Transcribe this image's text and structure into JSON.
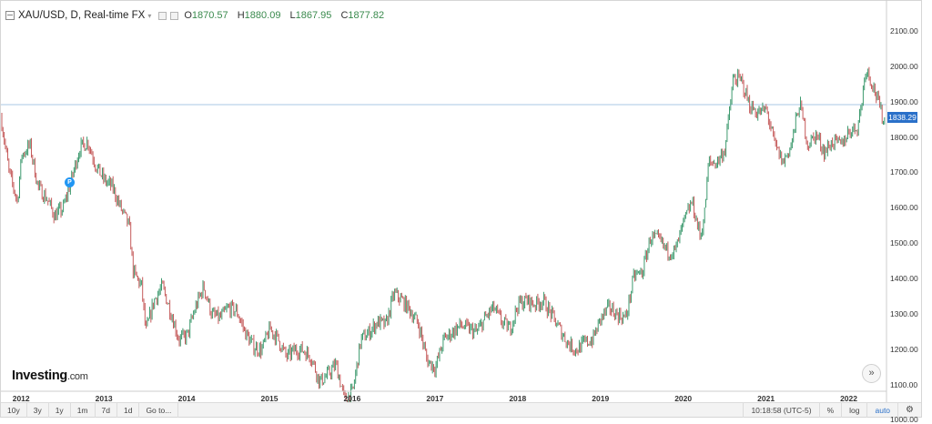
{
  "header": {
    "symbol": "XAU/USD, D, Real-time FX",
    "dropdown": "▾",
    "ohlc": [
      {
        "key": "O",
        "value": "1870.57"
      },
      {
        "key": "H",
        "value": "1880.09"
      },
      {
        "key": "L",
        "value": "1867.95"
      },
      {
        "key": "C",
        "value": "1877.82"
      }
    ]
  },
  "price_tag": "1838.29",
  "brand": {
    "name": "Investing",
    "suffix": ".com"
  },
  "marker_label": "P",
  "forward_icon": "»",
  "bottom_bar": {
    "ranges": [
      "10y",
      "3y",
      "1y",
      "1m",
      "7d",
      "1d"
    ],
    "goto": "Go to...",
    "time": "10:18:58 (UTC-5)",
    "percent": "%",
    "log": "log",
    "auto": "auto",
    "settings_icon": "gear-icon"
  },
  "colors": {
    "up": "#3d9a6e",
    "down": "#c55a5a",
    "accent": "#2a70c9",
    "price_line": "#a9c7e4"
  },
  "chart_data": {
    "type": "candlestick",
    "title": "XAU/USD, D, Real-time FX",
    "y_ticks": [
      "2100.00",
      "2000.00",
      "1900.00",
      "1800.00",
      "1700.00",
      "1600.00",
      "1500.00",
      "1400.00",
      "1300.00",
      "1200.00",
      "1100.00",
      "1000.00"
    ],
    "x_ticks": [
      "2012",
      "2013",
      "2014",
      "2015",
      "2016",
      "2017",
      "2018",
      "2019",
      "2020",
      "2021",
      "2022"
    ],
    "ylim": [
      975,
      2155
    ],
    "xlim": [
      2011.75,
      2022.45
    ],
    "last_price": 1838.29,
    "close_series": {
      "x": [
        2011.75,
        2011.85,
        2011.95,
        2012.0,
        2012.1,
        2012.2,
        2012.3,
        2012.4,
        2012.5,
        2012.6,
        2012.7,
        2012.8,
        2012.9,
        2013.0,
        2013.1,
        2013.2,
        2013.3,
        2013.35,
        2013.45,
        2013.5,
        2013.6,
        2013.7,
        2013.8,
        2013.9,
        2014.0,
        2014.1,
        2014.2,
        2014.3,
        2014.4,
        2014.5,
        2014.6,
        2014.7,
        2014.8,
        2014.9,
        2015.0,
        2015.1,
        2015.2,
        2015.3,
        2015.4,
        2015.5,
        2015.6,
        2015.7,
        2015.8,
        2015.9,
        2016.0,
        2016.1,
        2016.2,
        2016.3,
        2016.4,
        2016.5,
        2016.6,
        2016.7,
        2016.8,
        2016.9,
        2017.0,
        2017.1,
        2017.2,
        2017.3,
        2017.4,
        2017.5,
        2017.6,
        2017.7,
        2017.8,
        2017.9,
        2018.0,
        2018.1,
        2018.2,
        2018.3,
        2018.4,
        2018.5,
        2018.6,
        2018.7,
        2018.8,
        2018.9,
        2019.0,
        2019.1,
        2019.2,
        2019.3,
        2019.4,
        2019.5,
        2019.6,
        2019.7,
        2019.8,
        2019.9,
        2020.0,
        2020.1,
        2020.2,
        2020.25,
        2020.3,
        2020.4,
        2020.5,
        2020.6,
        2020.7,
        2020.8,
        2020.9,
        2021.0,
        2021.1,
        2021.2,
        2021.3,
        2021.4,
        2021.5,
        2021.6,
        2021.7,
        2021.8,
        2021.9,
        2022.0,
        2022.1,
        2022.15,
        2022.2,
        2022.3,
        2022.4,
        2022.45
      ],
      "y": [
        1860,
        1700,
        1620,
        1750,
        1780,
        1660,
        1630,
        1580,
        1600,
        1680,
        1770,
        1790,
        1720,
        1680,
        1660,
        1600,
        1550,
        1420,
        1380,
        1250,
        1340,
        1380,
        1310,
        1230,
        1240,
        1320,
        1380,
        1300,
        1290,
        1320,
        1310,
        1250,
        1210,
        1200,
        1260,
        1230,
        1180,
        1200,
        1200,
        1180,
        1110,
        1130,
        1160,
        1060,
        1080,
        1230,
        1250,
        1280,
        1270,
        1360,
        1340,
        1310,
        1270,
        1170,
        1150,
        1230,
        1250,
        1270,
        1260,
        1250,
        1290,
        1320,
        1280,
        1260,
        1330,
        1340,
        1330,
        1340,
        1300,
        1260,
        1220,
        1200,
        1220,
        1230,
        1290,
        1320,
        1300,
        1290,
        1410,
        1420,
        1520,
        1510,
        1480,
        1480,
        1560,
        1620,
        1520,
        1580,
        1730,
        1730,
        1770,
        1970,
        1960,
        1890,
        1870,
        1880,
        1780,
        1730,
        1780,
        1900,
        1780,
        1810,
        1760,
        1790,
        1780,
        1820,
        1830,
        1900,
        2000,
        1940,
        1860,
        1840
      ]
    }
  }
}
